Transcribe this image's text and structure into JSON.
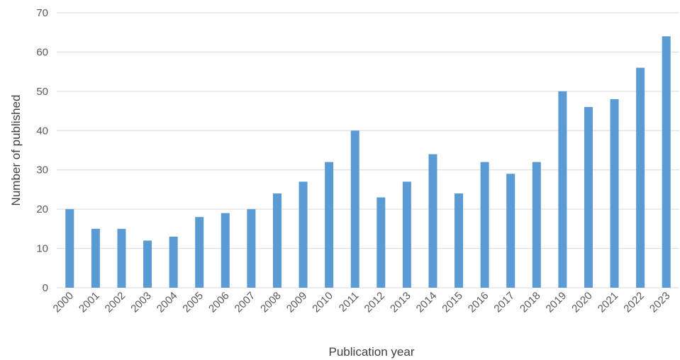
{
  "chart_data": {
    "type": "bar",
    "title": "",
    "xlabel": "Publication year",
    "ylabel": "Number of published",
    "categories": [
      "2000",
      "2001",
      "2002",
      "2003",
      "2004",
      "2005",
      "2006",
      "2007",
      "2008",
      "2009",
      "2010",
      "2011",
      "2012",
      "2013",
      "2014",
      "2015",
      "2016",
      "2017",
      "2018",
      "2019",
      "2020",
      "2021",
      "2022",
      "2023"
    ],
    "values": [
      20,
      15,
      15,
      12,
      13,
      18,
      19,
      20,
      24,
      27,
      32,
      40,
      23,
      27,
      34,
      24,
      32,
      29,
      32,
      50,
      46,
      48,
      56,
      64
    ],
    "ylim": [
      0,
      70
    ],
    "yticks": [
      0,
      10,
      20,
      30,
      40,
      50,
      60,
      70
    ],
    "grid": true,
    "legend": "none",
    "bar_color": "#5B9BD5",
    "grid_color": "#D9D9D9",
    "tick_label_color": "#595959"
  }
}
